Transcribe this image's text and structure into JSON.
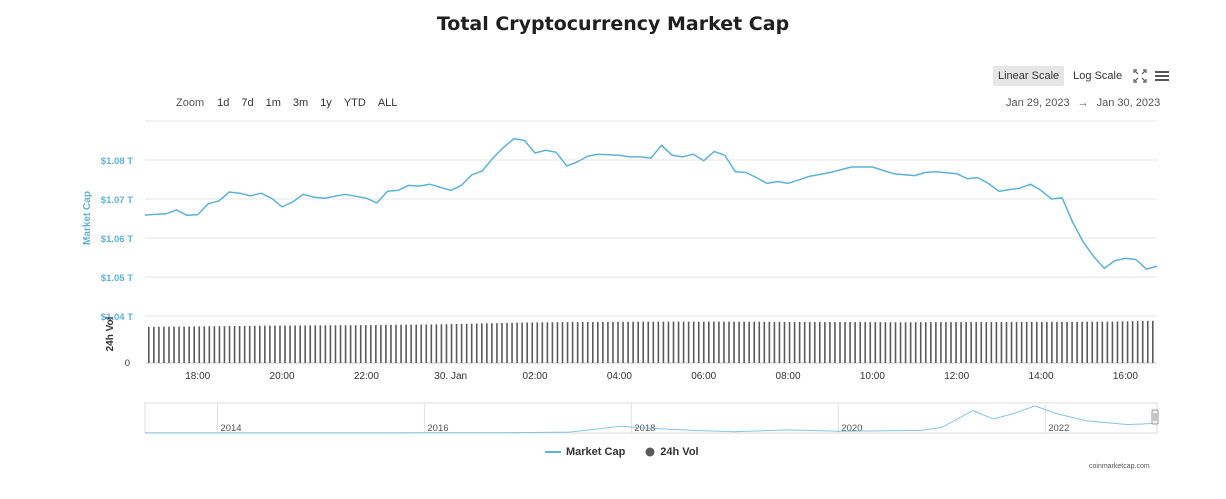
{
  "title": "Total Cryptocurrency Market Cap",
  "scale": {
    "linear_label": "Linear Scale",
    "log_label": "Log Scale",
    "active": "linear",
    "icons": [
      "fullscreen-icon",
      "menu-icon"
    ]
  },
  "zoom": {
    "label": "Zoom",
    "buttons": [
      "1d",
      "7d",
      "1m",
      "3m",
      "1y",
      "YTD",
      "ALL"
    ],
    "active": "1d"
  },
  "date_range": {
    "from": "Jan 29, 2023",
    "arrow": "→",
    "to": "Jan 30, 2023"
  },
  "watermark": "coinmarketcap.com",
  "colors": {
    "market_cap": "#5bb3dc",
    "volume": "#5a5a5a",
    "grid": "#e6e6e6"
  },
  "chart_data": {
    "type": "line",
    "title": "Total Cryptocurrency Market Cap",
    "ylabel": "Market Cap",
    "y_ticks": [
      "$1.04 T",
      "$1.05 T",
      "$1.06 T",
      "$1.07 T",
      "$1.08 T"
    ],
    "ylim": [
      1.04,
      1.09
    ],
    "x_ticks": [
      "18:00",
      "20:00",
      "22:00",
      "30. Jan",
      "02:00",
      "04:00",
      "06:00",
      "08:00",
      "10:00",
      "12:00",
      "14:00",
      "16:00"
    ],
    "x_tick_hours": [
      18,
      20,
      22,
      24,
      26,
      28,
      30,
      32,
      34,
      36,
      38,
      40
    ],
    "xlim_hours": [
      16.75,
      40.75
    ],
    "series": [
      {
        "name": "Market Cap",
        "unit": "T USD",
        "hours": [
          16.75,
          17.25,
          17.5,
          17.75,
          18.0,
          18.25,
          18.5,
          18.75,
          19.0,
          19.25,
          19.5,
          19.75,
          20.0,
          20.25,
          20.5,
          20.75,
          21.0,
          21.5,
          22.0,
          22.25,
          22.5,
          22.75,
          23.0,
          23.25,
          23.5,
          24.0,
          24.25,
          24.5,
          24.75,
          25.0,
          25.25,
          25.5,
          25.75,
          26.0,
          26.25,
          26.5,
          26.75,
          27.0,
          27.25,
          27.5,
          28.0,
          28.25,
          28.5,
          28.75,
          29.0,
          29.25,
          29.5,
          29.75,
          30.0,
          30.25,
          30.5,
          30.75,
          31.0,
          31.25,
          31.5,
          31.75,
          32.0,
          32.5,
          33.0,
          33.5,
          34.0,
          34.5,
          35.0,
          35.25,
          35.5,
          36.0,
          36.25,
          36.5,
          36.75,
          37.0,
          37.5,
          37.75,
          38.0,
          38.25,
          38.5,
          38.75,
          39.0,
          39.25,
          39.5,
          39.75,
          40.0,
          40.25,
          40.5,
          40.75
        ],
        "values": [
          1.0659,
          1.0662,
          1.0672,
          1.0658,
          1.066,
          1.0688,
          1.0695,
          1.0718,
          1.0715,
          1.0708,
          1.0715,
          1.0702,
          1.068,
          1.0692,
          1.0712,
          1.0705,
          1.0702,
          1.0712,
          1.0702,
          1.069,
          1.072,
          1.0722,
          1.0735,
          1.0733,
          1.0738,
          1.0722,
          1.0735,
          1.0762,
          1.0772,
          1.0805,
          1.0832,
          1.0855,
          1.085,
          1.0818,
          1.0825,
          1.082,
          1.0785,
          1.0795,
          1.081,
          1.0815,
          1.0812,
          1.0808,
          1.0808,
          1.0805,
          1.0838,
          1.0812,
          1.0808,
          1.0815,
          1.0798,
          1.0822,
          1.0812,
          1.077,
          1.0768,
          1.0755,
          1.074,
          1.0745,
          1.074,
          1.0758,
          1.0768,
          1.0782,
          1.0782,
          1.0765,
          1.076,
          1.0768,
          1.077,
          1.0765,
          1.0752,
          1.0755,
          1.074,
          1.072,
          1.0728,
          1.0738,
          1.0722,
          1.07,
          1.0703,
          1.064,
          1.059,
          1.0552,
          1.0522,
          1.0542,
          1.0548,
          1.0545,
          1.052,
          1.0528
        ]
      },
      {
        "name": "24h Vol",
        "ylabel": "24h Vol",
        "y_tick": "0",
        "relative_values": [
          0.82,
          0.83,
          0.84,
          0.85,
          0.855,
          0.86,
          0.87,
          0.88,
          0.9,
          0.92,
          0.93,
          0.935,
          0.94,
          0.94,
          0.94,
          0.935,
          0.93,
          0.93,
          0.925,
          0.93,
          0.93,
          0.935,
          0.935,
          0.94,
          0.96
        ]
      }
    ],
    "navigator": {
      "x_ticks": [
        "2014",
        "2016",
        "2018",
        "2020",
        "2022"
      ],
      "xlim_years": [
        2013.3,
        2023.08
      ],
      "years": [
        2013.3,
        2014,
        2015,
        2016,
        2016.8,
        2017.4,
        2017.9,
        2018.1,
        2018.6,
        2019.0,
        2019.5,
        2020.0,
        2020.3,
        2020.8,
        2021.0,
        2021.3,
        2021.5,
        2021.7,
        2021.9,
        2022.1,
        2022.4,
        2022.8,
        2023.08
      ],
      "values": [
        0.01,
        0.01,
        0.01,
        0.02,
        0.03,
        0.1,
        0.72,
        0.55,
        0.28,
        0.13,
        0.33,
        0.19,
        0.21,
        0.28,
        0.6,
        2.4,
        1.5,
        2.1,
        2.9,
        2.1,
        1.3,
        0.9,
        1.05
      ],
      "ylim": [
        0,
        3.0
      ]
    },
    "legend": {
      "position": "bottom-center",
      "items": [
        "Market Cap",
        "24h Vol"
      ]
    },
    "grid": true
  }
}
